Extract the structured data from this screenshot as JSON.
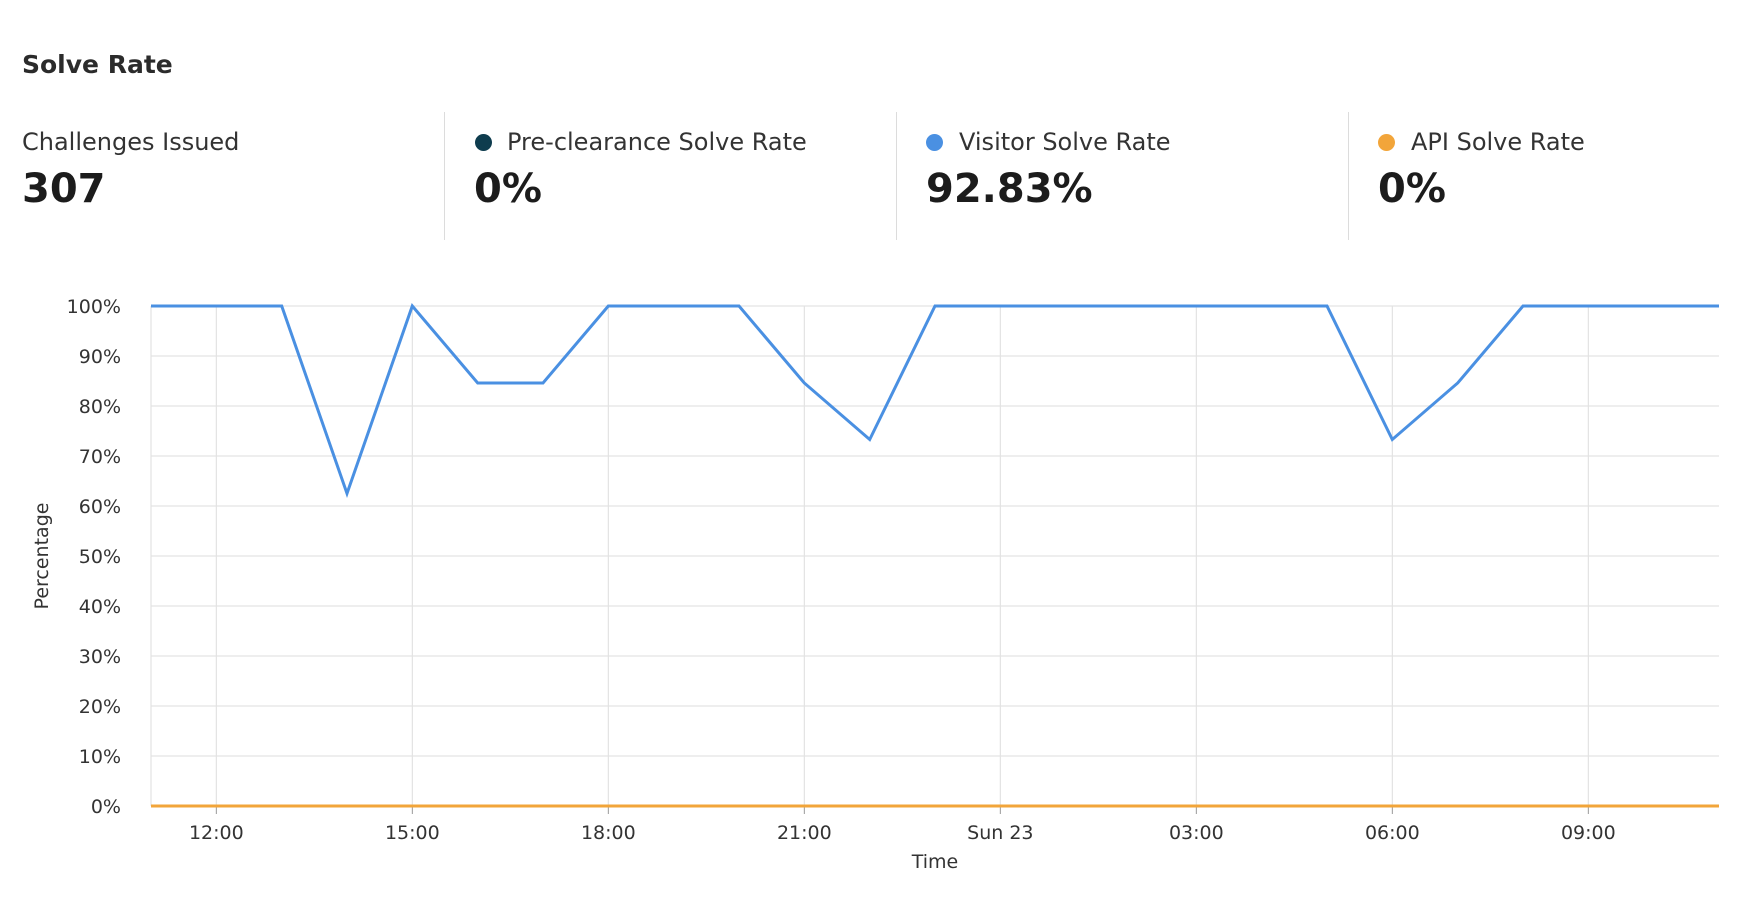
{
  "title": "Solve Rate",
  "stats": [
    {
      "label": "Challenges Issued",
      "value": "307",
      "color": ""
    },
    {
      "label": "Pre-clearance Solve Rate",
      "value": "0%",
      "color": "#0e3c4e"
    },
    {
      "label": "Visitor Solve Rate",
      "value": "92.83%",
      "color": "#4a90e2"
    },
    {
      "label": "API Solve Rate",
      "value": "0%",
      "color": "#f2a53a"
    }
  ],
  "chart_data": {
    "type": "line",
    "xlabel": "Time",
    "ylabel": "Percentage",
    "ylim": [
      0,
      100
    ],
    "x_ticks": [
      "12:00",
      "15:00",
      "18:00",
      "21:00",
      "Sun 23",
      "03:00",
      "06:00",
      "09:00"
    ],
    "y_ticks": [
      "0%",
      "10%",
      "20%",
      "30%",
      "40%",
      "50%",
      "60%",
      "70%",
      "80%",
      "90%",
      "100%"
    ],
    "x": [
      "11:00",
      "12:00",
      "13:00",
      "14:00",
      "15:00",
      "16:00",
      "17:00",
      "18:00",
      "19:00",
      "20:00",
      "21:00",
      "22:00",
      "23:00",
      "00:00",
      "01:00",
      "02:00",
      "03:00",
      "04:00",
      "05:00",
      "06:00",
      "07:00",
      "08:00",
      "09:00",
      "10:00",
      "11:00"
    ],
    "series": [
      {
        "name": "Visitor Solve Rate",
        "color": "#4a90e2",
        "values": [
          100,
          100,
          100,
          62.5,
          100,
          84.6,
          84.6,
          100,
          100,
          100,
          84.6,
          73.3,
          100,
          100,
          100,
          100,
          100,
          100,
          100,
          73.3,
          84.6,
          100,
          100,
          100,
          100
        ]
      },
      {
        "name": "Pre-clearance Solve Rate",
        "color": "#0e3c4e",
        "values": [
          0,
          0,
          0,
          0,
          0,
          0,
          0,
          0,
          0,
          0,
          0,
          0,
          0,
          0,
          0,
          0,
          0,
          0,
          0,
          0,
          0,
          0,
          0,
          0,
          0
        ]
      },
      {
        "name": "API Solve Rate",
        "color": "#f2a53a",
        "values": [
          0,
          0,
          0,
          0,
          0,
          0,
          0,
          0,
          0,
          0,
          0,
          0,
          0,
          0,
          0,
          0,
          0,
          0,
          0,
          0,
          0,
          0,
          0,
          0,
          0
        ]
      }
    ],
    "grid": true
  }
}
